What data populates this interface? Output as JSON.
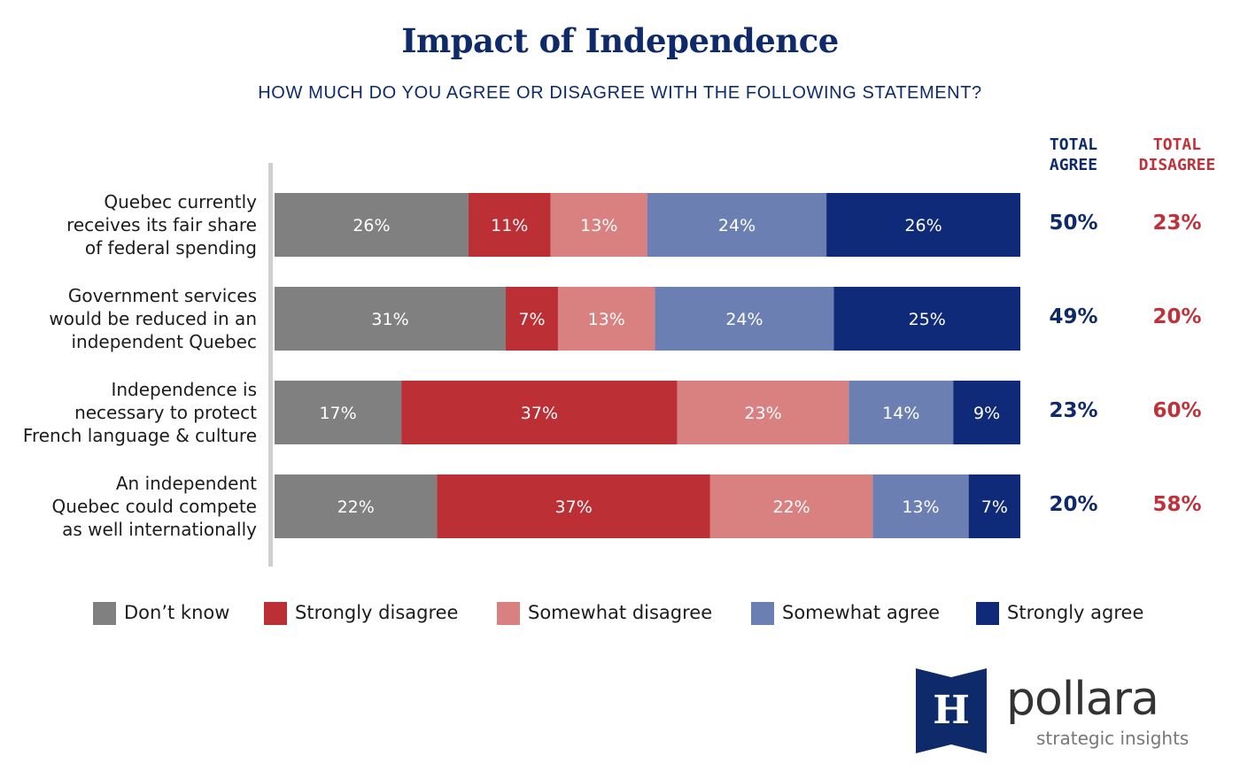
{
  "title": "Impact of Independence",
  "subtitle": "HOW MUCH DO YOU AGREE OR DISAGREE WITH THE FOLLOWING STATEMENT?",
  "columns": {
    "agree": [
      "TOTAL",
      "AGREE"
    ],
    "disagree": [
      "TOTAL",
      "DISAGREE"
    ]
  },
  "rows": [
    {
      "label_lines": [
        "Quebec currently",
        "receives its fair share",
        "of federal spending"
      ],
      "total_agree": "50%",
      "total_disagree": "23%"
    },
    {
      "label_lines": [
        "Government services",
        "would be reduced in an",
        "independent Quebec"
      ],
      "total_agree": "49%",
      "total_disagree": "20%"
    },
    {
      "label_lines": [
        "Independence is",
        "necessary to protect",
        "French language & culture"
      ],
      "total_agree": "23%",
      "total_disagree": "60%"
    },
    {
      "label_lines": [
        "An independent",
        "Quebec could compete",
        "as well internationally"
      ],
      "total_agree": "20%",
      "total_disagree": "58%"
    }
  ],
  "legend": [
    {
      "label": "Don’t know",
      "color": "#808080"
    },
    {
      "label": "Strongly disagree",
      "color": "#bc2f35"
    },
    {
      "label": "Somewhat disagree",
      "color": "#d98080"
    },
    {
      "label": "Somewhat agree",
      "color": "#6b7fb2"
    },
    {
      "label": "Strongly agree",
      "color": "#0f2a78"
    }
  ],
  "chart_data": {
    "type": "bar",
    "orientation": "horizontal",
    "stacked": true,
    "categories": [
      "Quebec currently receives its fair share of federal spending",
      "Government services would be reduced in an independent Quebec",
      "Independence is necessary to protect French language & culture",
      "An independent Quebec could compete as well internationally"
    ],
    "series": [
      {
        "name": "Don’t know",
        "color": "#808080",
        "values": [
          26,
          31,
          17,
          22
        ]
      },
      {
        "name": "Strongly disagree",
        "color": "#bc2f35",
        "values": [
          11,
          7,
          37,
          37
        ]
      },
      {
        "name": "Somewhat disagree",
        "color": "#d98080",
        "values": [
          13,
          13,
          23,
          22
        ]
      },
      {
        "name": "Somewhat agree",
        "color": "#6b7fb2",
        "values": [
          24,
          24,
          14,
          13
        ]
      },
      {
        "name": "Strongly agree",
        "color": "#0f2a78",
        "values": [
          26,
          25,
          9,
          7
        ]
      }
    ],
    "value_suffix": "%",
    "legend_position": "bottom",
    "grid": false
  },
  "logo": {
    "emblem_letter": "H",
    "wordmark": "pollara",
    "tagline": "strategic insights"
  }
}
